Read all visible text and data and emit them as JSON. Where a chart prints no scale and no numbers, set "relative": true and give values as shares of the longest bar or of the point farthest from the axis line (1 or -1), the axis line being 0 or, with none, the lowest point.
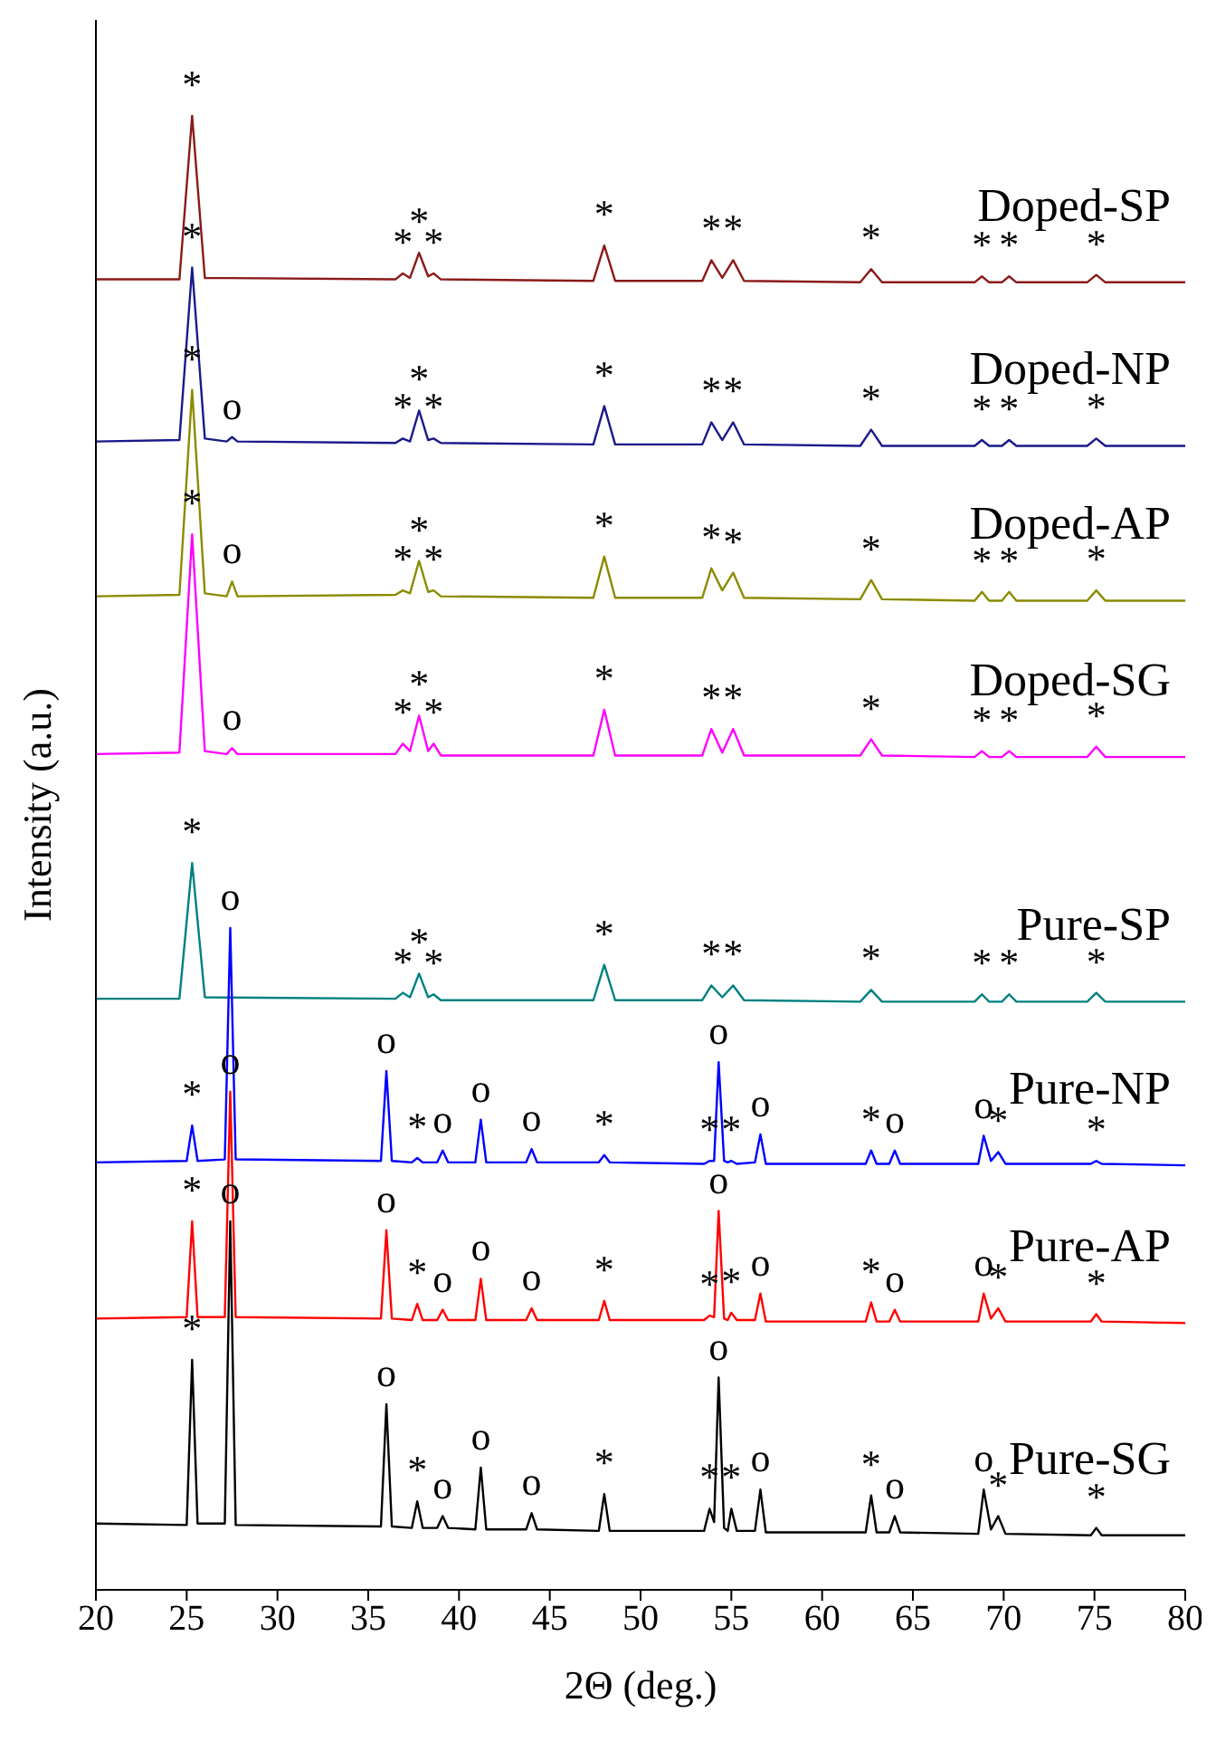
{
  "chart_data": {
    "type": "line",
    "xlabel": "2Θ (deg.)",
    "ylabel": "Intensity (a.u.)",
    "relative": true,
    "xlim": [
      20,
      80
    ],
    "xticks": [
      20,
      25,
      30,
      35,
      40,
      45,
      50,
      55,
      60,
      65,
      70,
      75,
      80
    ],
    "series": [
      {
        "name": "Doped-SP",
        "color": "#8b1a1a",
        "x": [
          20,
          24.6,
          25.3,
          26.0,
          36.5,
          36.9,
          37.3,
          37.8,
          38.3,
          38.6,
          39.0,
          47.4,
          48.0,
          48.6,
          53.4,
          53.9,
          54.5,
          55.1,
          55.7,
          62.1,
          62.7,
          63.3,
          68.4,
          68.8,
          69.2,
          69.9,
          70.3,
          70.7,
          74.6,
          75.1,
          75.6,
          80
        ],
        "values": [
          0.889,
          0.889,
          1.0,
          0.89,
          0.889,
          0.893,
          0.89,
          0.907,
          0.891,
          0.893,
          0.889,
          0.888,
          0.912,
          0.888,
          0.888,
          0.902,
          0.89,
          0.902,
          0.888,
          0.887,
          0.896,
          0.887,
          0.887,
          0.891,
          0.887,
          0.887,
          0.891,
          0.887,
          0.887,
          0.892,
          0.887,
          0.887
        ]
      },
      {
        "name": "Doped-NP",
        "color": "#1a1a8b",
        "x": [
          20,
          24.6,
          25.3,
          26.0,
          27.2,
          27.5,
          27.8,
          36.5,
          36.9,
          37.3,
          37.8,
          38.3,
          38.6,
          39.0,
          47.4,
          48.0,
          48.6,
          53.4,
          53.9,
          54.5,
          55.1,
          55.7,
          62.1,
          62.7,
          63.3,
          68.4,
          68.8,
          69.2,
          69.9,
          70.3,
          70.7,
          74.6,
          75.1,
          75.6,
          80
        ],
        "values": [
          0.779,
          0.78,
          0.897,
          0.781,
          0.779,
          0.782,
          0.779,
          0.778,
          0.781,
          0.779,
          0.8,
          0.78,
          0.781,
          0.778,
          0.777,
          0.803,
          0.777,
          0.777,
          0.792,
          0.78,
          0.792,
          0.777,
          0.776,
          0.787,
          0.776,
          0.776,
          0.78,
          0.776,
          0.776,
          0.78,
          0.776,
          0.776,
          0.781,
          0.776,
          0.776
        ]
      },
      {
        "name": "Doped-AP",
        "color": "#8b8b00",
        "x": [
          20,
          24.6,
          25.3,
          26.0,
          27.2,
          27.5,
          27.8,
          36.5,
          36.9,
          37.3,
          37.8,
          38.3,
          38.6,
          39.0,
          47.4,
          48.0,
          48.6,
          53.4,
          53.9,
          54.5,
          55.1,
          55.7,
          62.1,
          62.7,
          63.3,
          68.4,
          68.8,
          69.2,
          69.9,
          70.3,
          70.7,
          74.6,
          75.1,
          75.6,
          80
        ],
        "values": [
          0.674,
          0.675,
          0.814,
          0.676,
          0.674,
          0.684,
          0.674,
          0.675,
          0.678,
          0.676,
          0.698,
          0.677,
          0.678,
          0.674,
          0.673,
          0.701,
          0.673,
          0.673,
          0.693,
          0.678,
          0.69,
          0.673,
          0.672,
          0.685,
          0.672,
          0.671,
          0.677,
          0.671,
          0.671,
          0.677,
          0.671,
          0.671,
          0.678,
          0.671,
          0.671
        ]
      },
      {
        "name": "Doped-SG",
        "color": "#ff00ff",
        "x": [
          20,
          24.6,
          25.3,
          26.0,
          27.2,
          27.5,
          27.8,
          36.5,
          36.9,
          37.3,
          37.8,
          38.3,
          38.6,
          39.0,
          47.4,
          48.0,
          48.6,
          53.4,
          53.9,
          54.5,
          55.1,
          55.7,
          62.1,
          62.7,
          63.3,
          68.4,
          68.8,
          69.2,
          69.9,
          70.3,
          70.7,
          74.6,
          75.1,
          75.6,
          80
        ],
        "values": [
          0.567,
          0.568,
          0.716,
          0.569,
          0.567,
          0.571,
          0.567,
          0.567,
          0.574,
          0.569,
          0.593,
          0.569,
          0.574,
          0.566,
          0.566,
          0.597,
          0.566,
          0.566,
          0.584,
          0.568,
          0.584,
          0.566,
          0.566,
          0.577,
          0.566,
          0.565,
          0.569,
          0.565,
          0.565,
          0.569,
          0.565,
          0.565,
          0.572,
          0.565,
          0.565
        ]
      },
      {
        "name": "Pure-SP",
        "color": "#008080",
        "x": [
          20,
          24.6,
          25.3,
          26.0,
          36.5,
          36.9,
          37.3,
          37.8,
          38.3,
          38.6,
          39.0,
          47.4,
          48.0,
          48.6,
          53.4,
          53.9,
          54.5,
          55.1,
          55.7,
          62.1,
          62.7,
          63.3,
          68.4,
          68.8,
          69.2,
          69.9,
          70.3,
          70.7,
          74.6,
          75.1,
          75.6,
          80
        ],
        "values": [
          0.401,
          0.401,
          0.493,
          0.402,
          0.401,
          0.405,
          0.402,
          0.418,
          0.402,
          0.404,
          0.4,
          0.4,
          0.424,
          0.4,
          0.4,
          0.41,
          0.402,
          0.41,
          0.4,
          0.399,
          0.407,
          0.399,
          0.399,
          0.404,
          0.399,
          0.399,
          0.404,
          0.399,
          0.399,
          0.405,
          0.399,
          0.399
        ]
      },
      {
        "name": "Pure-NP",
        "color": "#0000ff",
        "x": [
          20,
          25.0,
          25.3,
          25.6,
          27.1,
          27.4,
          27.7,
          35.7,
          36.0,
          36.3,
          37.4,
          37.7,
          38.0,
          38.8,
          39.1,
          39.4,
          40.9,
          41.2,
          41.5,
          43.7,
          44.0,
          44.3,
          47.7,
          48.0,
          48.3,
          53.5,
          53.8,
          54.05,
          54.3,
          54.6,
          54.8,
          55.0,
          55.3,
          56.3,
          56.6,
          56.9,
          62.4,
          62.7,
          63.0,
          63.7,
          64.0,
          64.3,
          68.6,
          68.9,
          69.3,
          69.7,
          70.1,
          74.8,
          75.1,
          75.4,
          80
        ],
        "values": [
          0.29,
          0.291,
          0.315,
          0.291,
          0.292,
          0.449,
          0.292,
          0.291,
          0.352,
          0.291,
          0.29,
          0.293,
          0.29,
          0.29,
          0.298,
          0.29,
          0.29,
          0.319,
          0.29,
          0.29,
          0.299,
          0.29,
          0.29,
          0.295,
          0.29,
          0.289,
          0.291,
          0.291,
          0.358,
          0.291,
          0.29,
          0.291,
          0.289,
          0.29,
          0.309,
          0.289,
          0.289,
          0.298,
          0.289,
          0.289,
          0.298,
          0.289,
          0.289,
          0.308,
          0.291,
          0.297,
          0.289,
          0.289,
          0.291,
          0.289,
          0.288
        ]
      },
      {
        "name": "Pure-AP",
        "color": "#ff0000",
        "x": [
          20,
          25.0,
          25.3,
          25.6,
          27.1,
          27.4,
          27.7,
          35.7,
          36.0,
          36.3,
          37.4,
          37.7,
          38.0,
          38.8,
          39.1,
          39.4,
          40.9,
          41.2,
          41.5,
          43.7,
          44.0,
          44.3,
          47.7,
          48.0,
          48.3,
          53.5,
          53.8,
          54.05,
          54.3,
          54.6,
          54.8,
          55.0,
          55.3,
          56.3,
          56.6,
          56.9,
          62.4,
          62.7,
          63.0,
          63.7,
          64.0,
          64.3,
          68.6,
          68.9,
          69.3,
          69.7,
          70.1,
          74.8,
          75.1,
          75.4,
          80
        ],
        "values": [
          0.184,
          0.185,
          0.25,
          0.185,
          0.185,
          0.338,
          0.185,
          0.184,
          0.244,
          0.184,
          0.183,
          0.194,
          0.183,
          0.183,
          0.19,
          0.183,
          0.183,
          0.211,
          0.183,
          0.183,
          0.191,
          0.183,
          0.183,
          0.196,
          0.183,
          0.183,
          0.186,
          0.185,
          0.257,
          0.184,
          0.183,
          0.188,
          0.183,
          0.183,
          0.201,
          0.182,
          0.182,
          0.195,
          0.182,
          0.182,
          0.19,
          0.182,
          0.182,
          0.201,
          0.184,
          0.191,
          0.182,
          0.182,
          0.187,
          0.182,
          0.181
        ]
      },
      {
        "name": "Pure-SG",
        "color": "#000000",
        "x": [
          20,
          25.0,
          25.3,
          25.6,
          27.1,
          27.4,
          27.7,
          35.7,
          36.0,
          36.3,
          37.4,
          37.7,
          38.0,
          38.8,
          39.1,
          39.4,
          40.9,
          41.2,
          41.5,
          43.7,
          44.0,
          44.3,
          47.7,
          48.0,
          48.3,
          53.5,
          53.8,
          54.05,
          54.3,
          54.6,
          54.8,
          55.0,
          55.3,
          56.3,
          56.6,
          56.9,
          62.4,
          62.7,
          63.0,
          63.7,
          64.0,
          64.3,
          68.6,
          68.9,
          69.3,
          69.7,
          70.1,
          74.8,
          75.1,
          75.4,
          80
        ],
        "values": [
          0.045,
          0.044,
          0.156,
          0.045,
          0.045,
          0.25,
          0.044,
          0.043,
          0.126,
          0.043,
          0.042,
          0.06,
          0.042,
          0.042,
          0.05,
          0.042,
          0.041,
          0.083,
          0.041,
          0.041,
          0.052,
          0.041,
          0.04,
          0.065,
          0.04,
          0.04,
          0.055,
          0.046,
          0.144,
          0.042,
          0.04,
          0.055,
          0.04,
          0.04,
          0.068,
          0.039,
          0.039,
          0.064,
          0.039,
          0.039,
          0.05,
          0.039,
          0.038,
          0.068,
          0.041,
          0.05,
          0.038,
          0.037,
          0.042,
          0.037,
          0.037
        ]
      }
    ],
    "annotations": [
      {
        "text": "*",
        "x": 25.3,
        "y": 1.0
      },
      {
        "text": "*",
        "x": 36.9,
        "y": 0.893
      },
      {
        "text": "*",
        "x": 37.8,
        "y": 0.907
      },
      {
        "text": "*",
        "x": 38.6,
        "y": 0.893
      },
      {
        "text": "*",
        "x": 48.0,
        "y": 0.912
      },
      {
        "text": "*",
        "x": 53.9,
        "y": 0.902
      },
      {
        "text": "*",
        "x": 55.1,
        "y": 0.902
      },
      {
        "text": "*",
        "x": 62.7,
        "y": 0.896
      },
      {
        "text": "*",
        "x": 68.8,
        "y": 0.891
      },
      {
        "text": "*",
        "x": 70.3,
        "y": 0.891
      },
      {
        "text": "*",
        "x": 75.1,
        "y": 0.892
      },
      {
        "text": "*",
        "x": 25.3,
        "y": 0.897
      },
      {
        "text": "o",
        "x": 27.5,
        "y": 0.782
      },
      {
        "text": "*",
        "x": 36.9,
        "y": 0.781
      },
      {
        "text": "*",
        "x": 37.8,
        "y": 0.8
      },
      {
        "text": "*",
        "x": 38.6,
        "y": 0.781
      },
      {
        "text": "*",
        "x": 48.0,
        "y": 0.803
      },
      {
        "text": "*",
        "x": 53.9,
        "y": 0.792
      },
      {
        "text": "*",
        "x": 55.1,
        "y": 0.792
      },
      {
        "text": "*",
        "x": 62.7,
        "y": 0.787
      },
      {
        "text": "*",
        "x": 68.8,
        "y": 0.78
      },
      {
        "text": "*",
        "x": 70.3,
        "y": 0.78
      },
      {
        "text": "*",
        "x": 75.1,
        "y": 0.781
      },
      {
        "text": "*",
        "x": 25.3,
        "y": 0.814
      },
      {
        "text": "o",
        "x": 27.5,
        "y": 0.684
      },
      {
        "text": "*",
        "x": 36.9,
        "y": 0.678
      },
      {
        "text": "*",
        "x": 37.8,
        "y": 0.698
      },
      {
        "text": "*",
        "x": 38.6,
        "y": 0.678
      },
      {
        "text": "*",
        "x": 48.0,
        "y": 0.701
      },
      {
        "text": "*",
        "x": 53.9,
        "y": 0.693
      },
      {
        "text": "*",
        "x": 55.1,
        "y": 0.69
      },
      {
        "text": "*",
        "x": 62.7,
        "y": 0.685
      },
      {
        "text": "*",
        "x": 68.8,
        "y": 0.677
      },
      {
        "text": "*",
        "x": 70.3,
        "y": 0.677
      },
      {
        "text": "*",
        "x": 75.1,
        "y": 0.678
      },
      {
        "text": "*",
        "x": 25.3,
        "y": 0.716
      },
      {
        "text": "o",
        "x": 27.5,
        "y": 0.571
      },
      {
        "text": "*",
        "x": 36.9,
        "y": 0.574
      },
      {
        "text": "*",
        "x": 37.8,
        "y": 0.593
      },
      {
        "text": "*",
        "x": 38.6,
        "y": 0.574
      },
      {
        "text": "*",
        "x": 48.0,
        "y": 0.597
      },
      {
        "text": "*",
        "x": 53.9,
        "y": 0.584
      },
      {
        "text": "*",
        "x": 55.1,
        "y": 0.584
      },
      {
        "text": "*",
        "x": 62.7,
        "y": 0.577
      },
      {
        "text": "*",
        "x": 68.8,
        "y": 0.569
      },
      {
        "text": "*",
        "x": 70.3,
        "y": 0.569
      },
      {
        "text": "*",
        "x": 75.1,
        "y": 0.572
      },
      {
        "text": "*",
        "x": 25.3,
        "y": 0.493
      },
      {
        "text": "*",
        "x": 36.9,
        "y": 0.405
      },
      {
        "text": "*",
        "x": 37.8,
        "y": 0.418
      },
      {
        "text": "*",
        "x": 38.6,
        "y": 0.404
      },
      {
        "text": "*",
        "x": 48.0,
        "y": 0.424
      },
      {
        "text": "*",
        "x": 53.9,
        "y": 0.41
      },
      {
        "text": "*",
        "x": 55.1,
        "y": 0.41
      },
      {
        "text": "*",
        "x": 62.7,
        "y": 0.407
      },
      {
        "text": "*",
        "x": 68.8,
        "y": 0.404
      },
      {
        "text": "*",
        "x": 70.3,
        "y": 0.404
      },
      {
        "text": "*",
        "x": 75.1,
        "y": 0.405
      },
      {
        "text": "*",
        "x": 25.3,
        "y": 0.315
      },
      {
        "text": "o",
        "x": 27.4,
        "y": 0.449
      },
      {
        "text": "o",
        "x": 36.0,
        "y": 0.352
      },
      {
        "text": "*",
        "x": 37.7,
        "y": 0.293
      },
      {
        "text": "o",
        "x": 39.1,
        "y": 0.298
      },
      {
        "text": "o",
        "x": 41.2,
        "y": 0.319
      },
      {
        "text": "o",
        "x": 44.0,
        "y": 0.299
      },
      {
        "text": "*",
        "x": 48.0,
        "y": 0.295
      },
      {
        "text": "*",
        "x": 53.8,
        "y": 0.291
      },
      {
        "text": "o",
        "x": 54.3,
        "y": 0.358
      },
      {
        "text": "*",
        "x": 55.0,
        "y": 0.291
      },
      {
        "text": "o",
        "x": 56.6,
        "y": 0.309
      },
      {
        "text": "*",
        "x": 62.7,
        "y": 0.298
      },
      {
        "text": "o",
        "x": 64.0,
        "y": 0.298
      },
      {
        "text": "o",
        "x": 68.9,
        "y": 0.308
      },
      {
        "text": "*",
        "x": 69.7,
        "y": 0.297
      },
      {
        "text": "*",
        "x": 75.1,
        "y": 0.291
      },
      {
        "text": "*",
        "x": 25.3,
        "y": 0.25
      },
      {
        "text": "o",
        "x": 27.4,
        "y": 0.338
      },
      {
        "text": "o",
        "x": 36.0,
        "y": 0.244
      },
      {
        "text": "*",
        "x": 37.7,
        "y": 0.194
      },
      {
        "text": "o",
        "x": 39.1,
        "y": 0.19
      },
      {
        "text": "o",
        "x": 41.2,
        "y": 0.211
      },
      {
        "text": "o",
        "x": 44.0,
        "y": 0.191
      },
      {
        "text": "*",
        "x": 48.0,
        "y": 0.196
      },
      {
        "text": "*",
        "x": 53.8,
        "y": 0.186
      },
      {
        "text": "o",
        "x": 54.3,
        "y": 0.257
      },
      {
        "text": "*",
        "x": 55.0,
        "y": 0.188
      },
      {
        "text": "o",
        "x": 56.6,
        "y": 0.201
      },
      {
        "text": "*",
        "x": 62.7,
        "y": 0.195
      },
      {
        "text": "o",
        "x": 64.0,
        "y": 0.19
      },
      {
        "text": "o",
        "x": 68.9,
        "y": 0.201
      },
      {
        "text": "*",
        "x": 69.7,
        "y": 0.191
      },
      {
        "text": "*",
        "x": 75.1,
        "y": 0.187
      },
      {
        "text": "*",
        "x": 25.3,
        "y": 0.156
      },
      {
        "text": "o",
        "x": 27.4,
        "y": 0.25
      },
      {
        "text": "o",
        "x": 36.0,
        "y": 0.126
      },
      {
        "text": "*",
        "x": 37.7,
        "y": 0.06
      },
      {
        "text": "o",
        "x": 39.1,
        "y": 0.05
      },
      {
        "text": "o",
        "x": 41.2,
        "y": 0.083
      },
      {
        "text": "o",
        "x": 44.0,
        "y": 0.052
      },
      {
        "text": "*",
        "x": 48.0,
        "y": 0.065
      },
      {
        "text": "*",
        "x": 53.8,
        "y": 0.055
      },
      {
        "text": "o",
        "x": 54.3,
        "y": 0.144
      },
      {
        "text": "*",
        "x": 55.0,
        "y": 0.055
      },
      {
        "text": "o",
        "x": 56.6,
        "y": 0.068
      },
      {
        "text": "*",
        "x": 62.7,
        "y": 0.064
      },
      {
        "text": "o",
        "x": 64.0,
        "y": 0.05
      },
      {
        "text": "o",
        "x": 68.9,
        "y": 0.068
      },
      {
        "text": "*",
        "x": 69.7,
        "y": 0.05
      },
      {
        "text": "*",
        "x": 75.1,
        "y": 0.042
      }
    ]
  }
}
